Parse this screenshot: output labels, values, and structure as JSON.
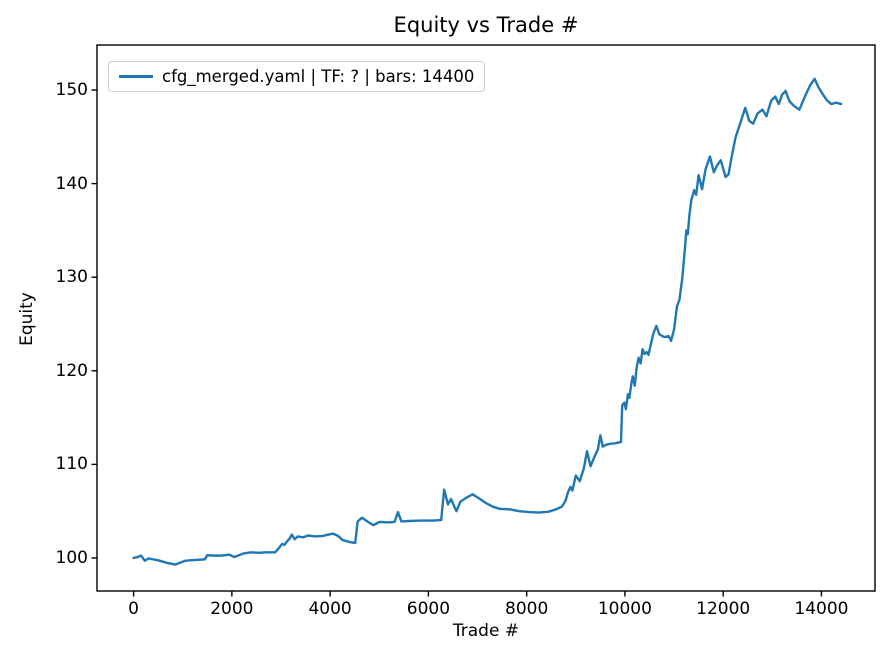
{
  "figure": {
    "background": "#ffffff",
    "spine_color": "#000000",
    "tick_color": "#000000"
  },
  "chart_data": {
    "type": "line",
    "title": "Equity vs Trade #",
    "xlabel": "Trade #",
    "ylabel": "Equity",
    "grid": false,
    "legend": {
      "position": "upper left",
      "entries": [
        {
          "label": "cfg_merged.yaml | TF: ? | bars: 14400",
          "color": "#1f77b4"
        }
      ]
    },
    "xlim": [
      -745,
      15090
    ],
    "ylim": [
      96.47,
      154.81
    ],
    "xticks": [
      0,
      2000,
      4000,
      6000,
      8000,
      10000,
      12000,
      14000
    ],
    "yticks": [
      100,
      110,
      120,
      130,
      140,
      150
    ],
    "series": [
      {
        "name": "cfg_merged.yaml | TF: ? | bars: 14400",
        "color": "#1f77b4",
        "line_width": 2.4,
        "points": [
          [
            0,
            100.0
          ],
          [
            80,
            100.1
          ],
          [
            150,
            100.25
          ],
          [
            230,
            99.7
          ],
          [
            300,
            99.95
          ],
          [
            400,
            99.85
          ],
          [
            500,
            99.75
          ],
          [
            600,
            99.6
          ],
          [
            700,
            99.45
          ],
          [
            850,
            99.3
          ],
          [
            950,
            99.5
          ],
          [
            1050,
            99.7
          ],
          [
            1150,
            99.75
          ],
          [
            1300,
            99.8
          ],
          [
            1450,
            99.85
          ],
          [
            1500,
            100.3
          ],
          [
            1650,
            100.25
          ],
          [
            1800,
            100.25
          ],
          [
            1950,
            100.35
          ],
          [
            2050,
            100.1
          ],
          [
            2150,
            100.3
          ],
          [
            2250,
            100.5
          ],
          [
            2400,
            100.6
          ],
          [
            2550,
            100.55
          ],
          [
            2700,
            100.6
          ],
          [
            2880,
            100.6
          ],
          [
            2950,
            101.0
          ],
          [
            3020,
            101.5
          ],
          [
            3070,
            101.4
          ],
          [
            3120,
            101.75
          ],
          [
            3180,
            102.1
          ],
          [
            3220,
            102.5
          ],
          [
            3280,
            102.0
          ],
          [
            3340,
            102.3
          ],
          [
            3450,
            102.2
          ],
          [
            3550,
            102.4
          ],
          [
            3700,
            102.3
          ],
          [
            3850,
            102.35
          ],
          [
            3970,
            102.5
          ],
          [
            4060,
            102.6
          ],
          [
            4160,
            102.35
          ],
          [
            4260,
            101.9
          ],
          [
            4400,
            101.7
          ],
          [
            4510,
            101.6
          ],
          [
            4560,
            103.9
          ],
          [
            4650,
            104.3
          ],
          [
            4760,
            103.9
          ],
          [
            4880,
            103.5
          ],
          [
            5000,
            103.85
          ],
          [
            5200,
            103.8
          ],
          [
            5310,
            103.85
          ],
          [
            5380,
            104.9
          ],
          [
            5450,
            103.9
          ],
          [
            5600,
            103.95
          ],
          [
            5850,
            104.0
          ],
          [
            6100,
            104.0
          ],
          [
            6260,
            104.05
          ],
          [
            6320,
            107.3
          ],
          [
            6400,
            105.7
          ],
          [
            6460,
            106.3
          ],
          [
            6570,
            105.0
          ],
          [
            6650,
            106.0
          ],
          [
            6760,
            106.4
          ],
          [
            6900,
            106.8
          ],
          [
            7050,
            106.3
          ],
          [
            7160,
            105.9
          ],
          [
            7300,
            105.5
          ],
          [
            7450,
            105.25
          ],
          [
            7650,
            105.2
          ],
          [
            7850,
            105.0
          ],
          [
            8050,
            104.9
          ],
          [
            8250,
            104.85
          ],
          [
            8450,
            104.95
          ],
          [
            8600,
            105.2
          ],
          [
            8720,
            105.5
          ],
          [
            8790,
            106.1
          ],
          [
            8840,
            107.0
          ],
          [
            8890,
            107.6
          ],
          [
            8930,
            107.2
          ],
          [
            9000,
            108.8
          ],
          [
            9080,
            108.2
          ],
          [
            9160,
            109.5
          ],
          [
            9230,
            111.4
          ],
          [
            9300,
            109.8
          ],
          [
            9380,
            110.8
          ],
          [
            9450,
            111.6
          ],
          [
            9500,
            113.1
          ],
          [
            9550,
            111.9
          ],
          [
            9620,
            112.1
          ],
          [
            9700,
            112.2
          ],
          [
            9800,
            112.25
          ],
          [
            9920,
            112.4
          ],
          [
            9945,
            116.3
          ],
          [
            9990,
            116.6
          ],
          [
            10020,
            115.9
          ],
          [
            10060,
            117.5
          ],
          [
            10090,
            117.1
          ],
          [
            10130,
            118.6
          ],
          [
            10160,
            119.4
          ],
          [
            10200,
            118.4
          ],
          [
            10240,
            120.4
          ],
          [
            10280,
            121.4
          ],
          [
            10320,
            120.8
          ],
          [
            10360,
            122.3
          ],
          [
            10400,
            121.8
          ],
          [
            10440,
            122.0
          ],
          [
            10480,
            121.7
          ],
          [
            10530,
            122.9
          ],
          [
            10580,
            124.0
          ],
          [
            10640,
            124.8
          ],
          [
            10700,
            123.9
          ],
          [
            10800,
            123.6
          ],
          [
            10890,
            123.7
          ],
          [
            10940,
            123.2
          ],
          [
            11000,
            124.4
          ],
          [
            11060,
            126.9
          ],
          [
            11110,
            127.6
          ],
          [
            11170,
            130.0
          ],
          [
            11220,
            133.0
          ],
          [
            11250,
            135.0
          ],
          [
            11280,
            134.6
          ],
          [
            11310,
            136.5
          ],
          [
            11350,
            138.2
          ],
          [
            11410,
            139.3
          ],
          [
            11450,
            138.8
          ],
          [
            11500,
            140.9
          ],
          [
            11570,
            139.4
          ],
          [
            11640,
            141.5
          ],
          [
            11730,
            142.9
          ],
          [
            11810,
            141.2
          ],
          [
            11870,
            141.9
          ],
          [
            11950,
            142.5
          ],
          [
            12050,
            140.7
          ],
          [
            12110,
            141.0
          ],
          [
            12160,
            142.5
          ],
          [
            12250,
            144.9
          ],
          [
            12350,
            146.5
          ],
          [
            12450,
            148.1
          ],
          [
            12530,
            146.7
          ],
          [
            12610,
            146.4
          ],
          [
            12700,
            147.5
          ],
          [
            12800,
            147.9
          ],
          [
            12880,
            147.2
          ],
          [
            12980,
            148.9
          ],
          [
            13060,
            149.3
          ],
          [
            13130,
            148.5
          ],
          [
            13200,
            149.5
          ],
          [
            13270,
            149.9
          ],
          [
            13350,
            148.8
          ],
          [
            13440,
            148.3
          ],
          [
            13550,
            147.9
          ],
          [
            13680,
            149.5
          ],
          [
            13770,
            150.5
          ],
          [
            13860,
            151.2
          ],
          [
            13940,
            150.3
          ],
          [
            14020,
            149.6
          ],
          [
            14110,
            148.9
          ],
          [
            14200,
            148.5
          ],
          [
            14300,
            148.65
          ],
          [
            14400,
            148.5
          ]
        ]
      }
    ]
  }
}
